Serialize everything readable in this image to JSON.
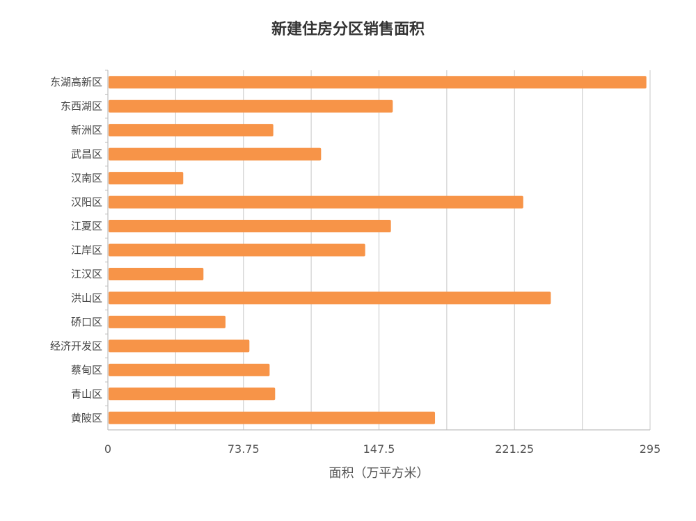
{
  "chart_data": {
    "type": "bar",
    "orientation": "horizontal",
    "title": "新建住房分区销售面积",
    "xlabel": "面积（万平方米）",
    "ylabel": "",
    "categories": [
      "东湖高新区",
      "东西湖区",
      "新洲区",
      "武昌区",
      "汉南区",
      "汉阳区",
      "江夏区",
      "江岸区",
      "江汉区",
      "洪山区",
      "硚口区",
      "经济开发区",
      "蔡甸区",
      "青山区",
      "黄陂区"
    ],
    "values": [
      293,
      155,
      90,
      116,
      41,
      226,
      154,
      140,
      52,
      241,
      64,
      77,
      88,
      91,
      178
    ],
    "xlim": [
      0,
      295
    ],
    "tick_labels": [
      "0",
      "73.75",
      "147.5",
      "221.25",
      "295"
    ],
    "grid": true,
    "legend": "none",
    "bar_color": "#F79448"
  }
}
